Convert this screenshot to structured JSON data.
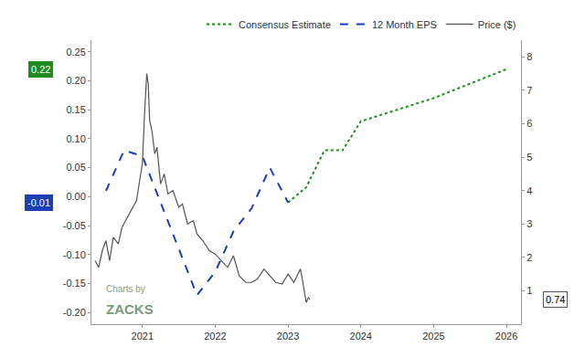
{
  "chart_data": {
    "type": "line",
    "xlim": [
      2020.3,
      2026.2
    ],
    "xticks": [
      2021,
      2022,
      2023,
      2024,
      2025,
      2026
    ],
    "ylim": [
      -0.22,
      0.27
    ],
    "yticks": [
      {
        "value": -0.2,
        "label": "-0.20"
      },
      {
        "value": -0.15,
        "label": "-0.15"
      },
      {
        "value": -0.1,
        "label": "-0.10"
      },
      {
        "value": -0.05,
        "label": "-0.05"
      },
      {
        "value": 0,
        "label": "0.00"
      },
      {
        "value": 0.05,
        "label": "0.05"
      },
      {
        "value": 0.1,
        "label": "0.10"
      },
      {
        "value": 0.15,
        "label": "0.15"
      },
      {
        "value": 0.2,
        "label": "0.20"
      },
      {
        "value": 0.25,
        "label": "0.25"
      }
    ],
    "y2lim": [
      0,
      8.5
    ],
    "y2ticks": [
      1,
      2,
      3,
      4,
      5,
      6,
      7,
      8
    ],
    "grid": false,
    "legend": "top right",
    "series": [
      {
        "name": "Consensus Estimate",
        "color": "#1e8c1e",
        "line_style": "dotted",
        "axis": "y",
        "x": [
          2023.0,
          2023.25,
          2023.5,
          2023.75,
          2024.0,
          2025.0,
          2026.0
        ],
        "values": [
          -0.01,
          0.016,
          0.08,
          0.08,
          0.13,
          0.17,
          0.22
        ]
      },
      {
        "name": "12 Month EPS",
        "color": "#1c3fb5",
        "line_style": "dashed",
        "axis": "y",
        "x": [
          2020.5,
          2020.75,
          2021.0,
          2021.75,
          2022.0,
          2022.25,
          2022.5,
          2022.75,
          2023.0
        ],
        "values": [
          0.01,
          0.08,
          0.07,
          -0.17,
          -0.13,
          -0.06,
          -0.02,
          0.05,
          -0.01
        ]
      },
      {
        "name": "Price ($)",
        "color": "#555555",
        "line_style": "solid",
        "axis": "y2",
        "x": [
          2020.35,
          2020.4,
          2020.45,
          2020.5,
          2020.55,
          2020.6,
          2020.67,
          2020.72,
          2020.77,
          2020.85,
          2020.92,
          2020.97,
          2021.0,
          2021.03,
          2021.06,
          2021.08,
          2021.1,
          2021.13,
          2021.17,
          2021.2,
          2021.25,
          2021.3,
          2021.35,
          2021.42,
          2021.5,
          2021.55,
          2021.62,
          2021.7,
          2021.75,
          2021.83,
          2021.92,
          2022.0,
          2022.08,
          2022.17,
          2022.25,
          2022.33,
          2022.42,
          2022.5,
          2022.58,
          2022.67,
          2022.75,
          2022.83,
          2022.92,
          2023.0,
          2023.08,
          2023.17,
          2023.2,
          2023.25,
          2023.28,
          2023.3
        ],
        "values": [
          1.9,
          1.7,
          2.2,
          2.5,
          1.9,
          2.6,
          2.4,
          2.9,
          3.1,
          3.4,
          3.7,
          4.4,
          4.8,
          6.3,
          7.5,
          7.2,
          6.1,
          5.8,
          5.1,
          5.3,
          4.2,
          4.5,
          3.9,
          4.0,
          3.5,
          3.6,
          3.0,
          3.1,
          2.7,
          2.5,
          2.2,
          2.1,
          1.9,
          1.7,
          2.05,
          1.45,
          1.25,
          1.25,
          1.35,
          1.65,
          1.45,
          1.25,
          1.2,
          1.5,
          1.25,
          1.65,
          1.3,
          0.65,
          0.8,
          0.74
        ]
      }
    ],
    "annotations": [
      {
        "text": "0.22",
        "value": 0.22,
        "axis": "y",
        "color": "#1e8c1e"
      },
      {
        "text": "-0.01",
        "value": -0.01,
        "axis": "y",
        "color": "#1c3fb5"
      },
      {
        "text": "0.74",
        "value": 0.74,
        "axis": "y2",
        "color": "#555555"
      }
    ],
    "credit": {
      "line1": "Charts by",
      "line2": "ZACKS"
    }
  }
}
